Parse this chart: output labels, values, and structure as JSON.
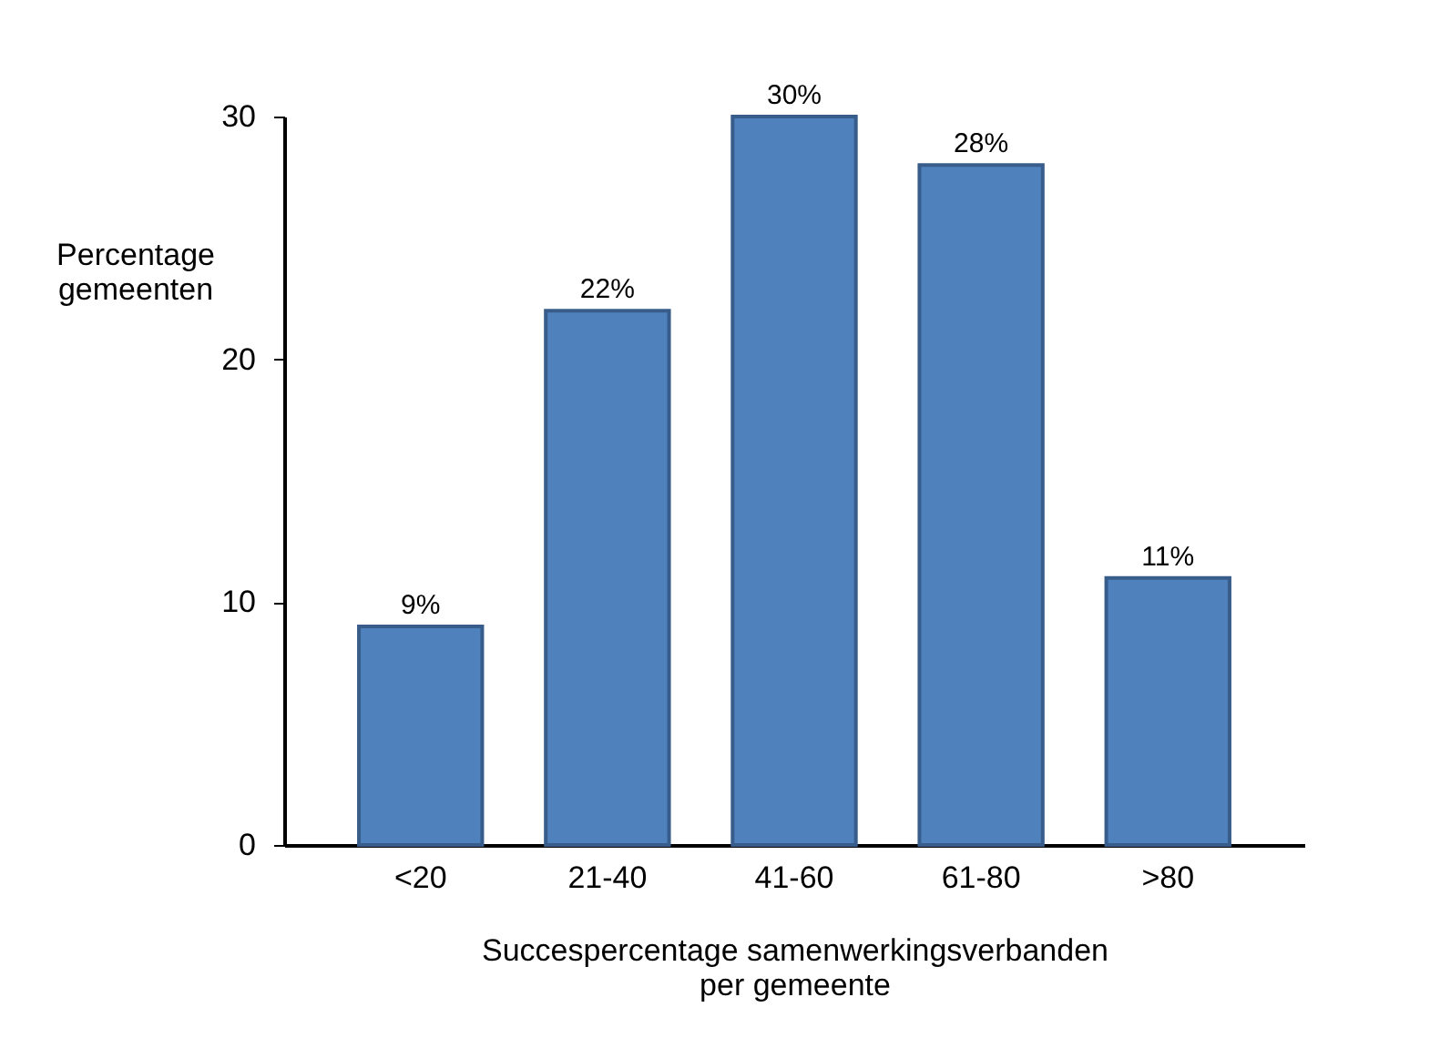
{
  "chart_data": {
    "type": "bar",
    "xlabel": "Succespercentage samenwerkingsverbanden per gemeente",
    "ylabel": "Percentage gemeenten",
    "categories": [
      "<20",
      "21-40",
      "41-60",
      "61-80",
      ">80"
    ],
    "values": [
      9,
      22,
      30,
      28,
      11
    ],
    "color": "#4f81bd",
    "value_labels": [
      "9%",
      "22%",
      "30%",
      "28%",
      "11%"
    ],
    "ylim": [
      0,
      30
    ],
    "yticks": [
      0,
      10,
      20,
      30
    ],
    "grid": false
  }
}
